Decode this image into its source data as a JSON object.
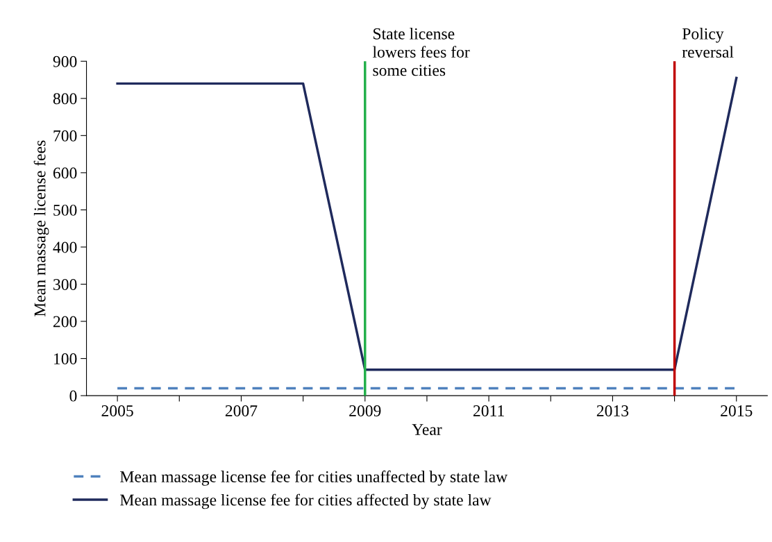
{
  "chart_data": {
    "type": "line",
    "xlabel": "Year",
    "ylabel": "Mean massage license fees",
    "x": [
      2005,
      2006,
      2007,
      2008,
      2009,
      2010,
      2011,
      2012,
      2013,
      2014,
      2015
    ],
    "series": [
      {
        "name": "Mean massage license fee for cities unaffected by state law",
        "color": "#4f81bd",
        "line_style": "dashed",
        "values": [
          20,
          20,
          20,
          20,
          20,
          20,
          20,
          20,
          20,
          20,
          20
        ]
      },
      {
        "name": "Mean massage license fee for cities affected by state law",
        "color": "#1f2a5c",
        "line_style": "solid",
        "values": [
          840,
          840,
          840,
          840,
          70,
          70,
          70,
          70,
          70,
          70,
          855
        ]
      }
    ],
    "xlim": [
      2004.5,
      2015.5
    ],
    "xticks": [
      2005,
      {
        "value": 2006,
        "label": null
      },
      2007,
      {
        "value": 2008,
        "label": null
      },
      2009,
      {
        "value": 2010,
        "label": null
      },
      2011,
      {
        "value": 2012,
        "label": null
      },
      2013,
      {
        "value": 2014,
        "label": null
      },
      2015
    ],
    "ylim": [
      0,
      900
    ],
    "yticks": [
      0,
      100,
      200,
      300,
      400,
      500,
      600,
      700,
      800,
      900
    ],
    "ref_lines": [
      {
        "axis": "x",
        "value": 2009,
        "label": "State license\nlowers fees for\nsome cities",
        "color": "#22b04a"
      },
      {
        "axis": "x",
        "value": 2014,
        "label": "Policy\nreversal",
        "color": "#c00000"
      }
    ],
    "grid": false,
    "legend": "bottom",
    "marker": "none"
  }
}
